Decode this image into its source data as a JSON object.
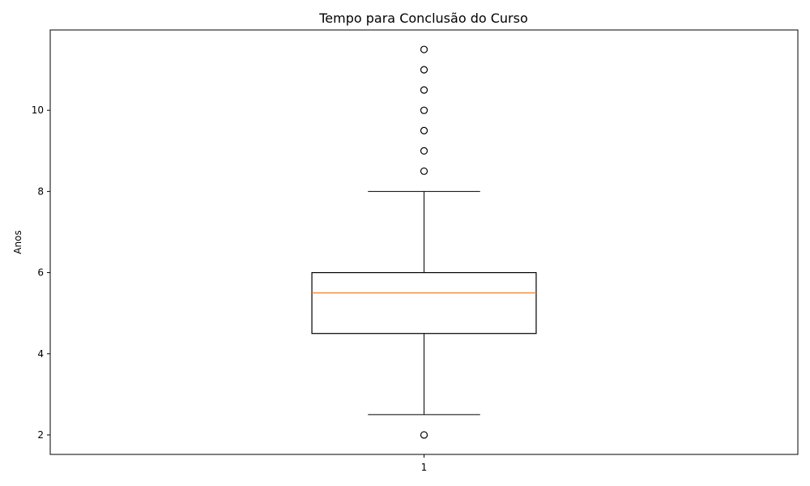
{
  "chart_data": {
    "type": "boxplot",
    "title": "Tempo para Conclusão do Curso",
    "xlabel": "",
    "ylabel": "Anos",
    "categories": [
      "1"
    ],
    "ylim": [
      1.52,
      11.98
    ],
    "yticks": [
      2,
      4,
      6,
      8,
      10
    ],
    "grid": false,
    "boxes": [
      {
        "category": "1",
        "whisker_low": 2.5,
        "q1": 4.5,
        "median": 5.5,
        "q3": 6.0,
        "whisker_high": 8.0,
        "outliers": [
          2.0,
          8.5,
          9.0,
          9.5,
          10.0,
          10.5,
          11.0,
          11.5
        ]
      }
    ],
    "colors": {
      "box": "#000000",
      "median": "#ff7f0e",
      "whisker": "#000000",
      "outlier": "#000000"
    }
  }
}
